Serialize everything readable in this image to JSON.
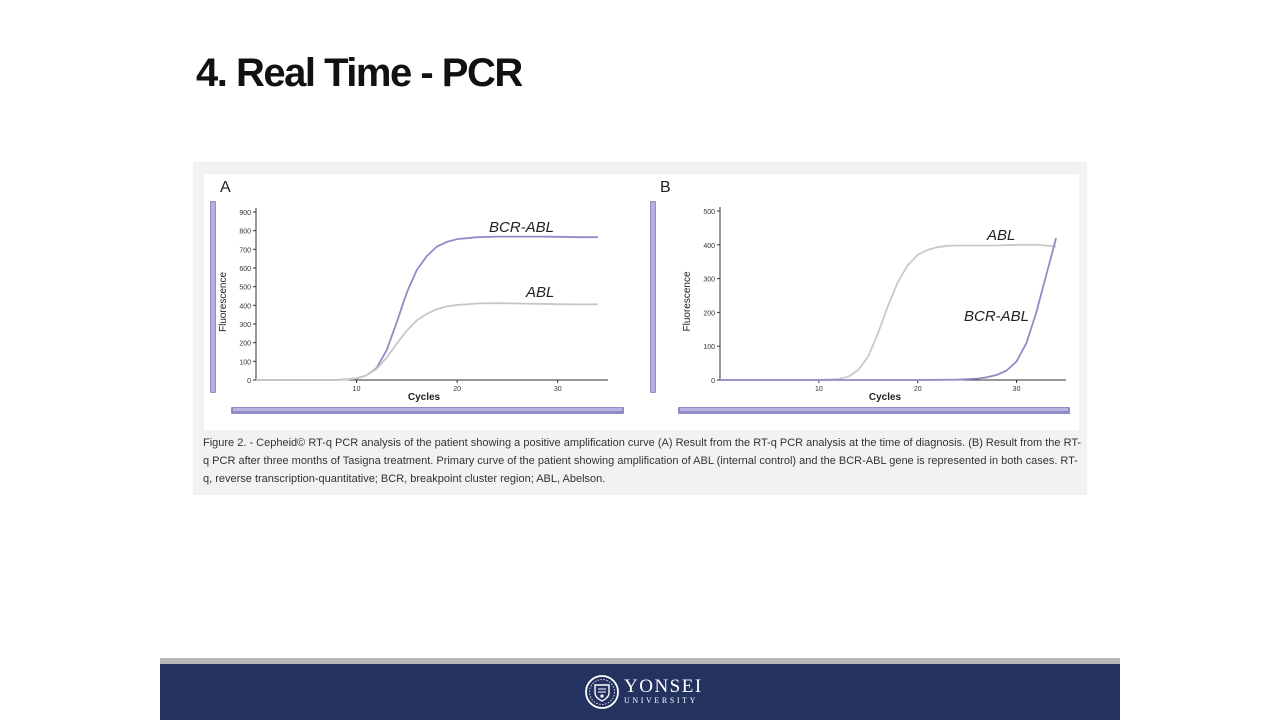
{
  "slide": {
    "title": "4. Real Time - PCR"
  },
  "figure": {
    "caption": "Figure 2. - Cepheid© RT-q PCR analysis of the patient showing a positive amplification curve (A) Result from the RT-q PCR analysis at the time of diagnosis. (B) Result from the RT-q PCR after three months of Tasigna treatment. Primary curve of the patient showing amplification of ABL (internal control) and the BCR-ABL gene is represented in both cases. RT-q, reverse transcription-quantitative; BCR, breakpoint cluster region; ABL, Abelson."
  },
  "footer": {
    "logo_name": "YONSEI",
    "logo_sub": "UNIVERSITY",
    "logo_icon": "yonsei-emblem-icon",
    "bar_color": "#24325f"
  },
  "chart_data": [
    {
      "type": "line",
      "panel_label": "A",
      "xlabel": "Cycles",
      "ylabel": "Fluorescence",
      "xlim": [
        0,
        35
      ],
      "ylim": [
        0,
        900
      ],
      "xticks": [
        10,
        20,
        30
      ],
      "yticks": [
        0,
        100,
        200,
        300,
        400,
        500,
        600,
        700,
        800,
        900
      ],
      "grid": false,
      "series": [
        {
          "name": "BCR-ABL",
          "color": "#8f8cc6",
          "x": [
            0,
            5,
            8,
            9,
            10,
            11,
            12,
            13,
            14,
            15,
            16,
            17,
            18,
            19,
            20,
            22,
            24,
            26,
            28,
            30,
            32,
            34
          ],
          "y": [
            0,
            0,
            0,
            3,
            8,
            25,
            65,
            160,
            310,
            470,
            590,
            665,
            715,
            740,
            755,
            765,
            768,
            768,
            768,
            767,
            765,
            765
          ]
        },
        {
          "name": "ABL",
          "color": "#c7c7c7",
          "x": [
            0,
            5,
            8,
            9,
            10,
            11,
            12,
            13,
            14,
            15,
            16,
            17,
            18,
            19,
            20,
            22,
            24,
            26,
            28,
            30,
            32,
            34
          ],
          "y": [
            0,
            0,
            0,
            2,
            8,
            25,
            60,
            120,
            195,
            265,
            320,
            355,
            380,
            395,
            402,
            410,
            412,
            410,
            408,
            406,
            405,
            405
          ]
        }
      ]
    },
    {
      "type": "line",
      "panel_label": "B",
      "xlabel": "Cycles",
      "ylabel": "Fluorescence",
      "xlim": [
        0,
        35
      ],
      "ylim": [
        0,
        500
      ],
      "xticks": [
        10,
        20,
        30
      ],
      "yticks": [
        0,
        100,
        200,
        300,
        400,
        500
      ],
      "grid": false,
      "series": [
        {
          "name": "ABL",
          "color": "#c9c9c9",
          "x": [
            0,
            5,
            10,
            12,
            13,
            14,
            15,
            16,
            17,
            18,
            19,
            20,
            21,
            22,
            23,
            24,
            26,
            28,
            30,
            32,
            34
          ],
          "y": [
            0,
            0,
            0,
            3,
            10,
            30,
            70,
            140,
            220,
            290,
            340,
            370,
            385,
            393,
            397,
            398,
            398,
            398,
            400,
            400,
            395
          ]
        },
        {
          "name": "BCR-ABL",
          "color": "#8f8cc6",
          "x": [
            0,
            5,
            10,
            15,
            20,
            24,
            26,
            27,
            28,
            29,
            30,
            31,
            32,
            33,
            34
          ],
          "y": [
            0,
            0,
            0,
            0,
            0,
            1,
            4,
            8,
            15,
            28,
            55,
            110,
            200,
            310,
            420
          ]
        }
      ]
    }
  ]
}
